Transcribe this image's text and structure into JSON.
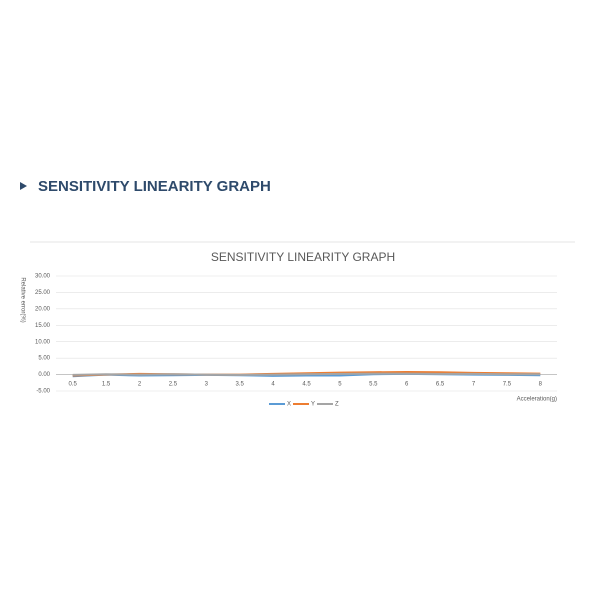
{
  "heading": "SENSITIVITY LINEARITY GRAPH",
  "chart_data": {
    "type": "line",
    "title": "SENSITIVITY LINEARITY GRAPH",
    "y_label": "Relative error(%)",
    "x_label": "Acceleration(g)",
    "categories": [
      "0.5",
      "1.5",
      "2",
      "2.5",
      "3",
      "3.5",
      "4",
      "4.5",
      "5",
      "5.5",
      "6",
      "6.5",
      "7",
      "7.5",
      "8"
    ],
    "series": [
      {
        "name": "X",
        "color": "#5b9bd5",
        "values": [
          -0.5,
          0,
          -0.3,
          -0.2,
          -0.1,
          -0.2,
          -0.4,
          -0.3,
          -0.3,
          0.1,
          0.2,
          0.1,
          0,
          -0.1,
          -0.2
        ]
      },
      {
        "name": "Y",
        "color": "#ed7d31",
        "values": [
          -0.3,
          0,
          0.2,
          0.1,
          0,
          0,
          0.2,
          0.4,
          0.6,
          0.7,
          0.8,
          0.7,
          0.5,
          0.4,
          0.3
        ]
      },
      {
        "name": "Z",
        "color": "#a5a5a5",
        "values": [
          -0.1,
          0.1,
          0,
          0.1,
          0,
          -0.1,
          0,
          0.1,
          0.2,
          0.3,
          0.3,
          0.2,
          0.2,
          0.1,
          0.1
        ]
      }
    ],
    "ylim": [
      -5,
      30
    ],
    "yticks": [
      {
        "value": -5,
        "label": "-5.00"
      },
      {
        "value": 0,
        "label": "0.00"
      },
      {
        "value": 5,
        "label": "5.00"
      },
      {
        "value": 10,
        "label": "10.00"
      },
      {
        "value": 15,
        "label": "15.00"
      },
      {
        "value": 20,
        "label": "20.00"
      },
      {
        "value": 25,
        "label": "25.00"
      },
      {
        "value": 30,
        "label": "30.00"
      }
    ],
    "grid": true,
    "legend": "bottom"
  }
}
